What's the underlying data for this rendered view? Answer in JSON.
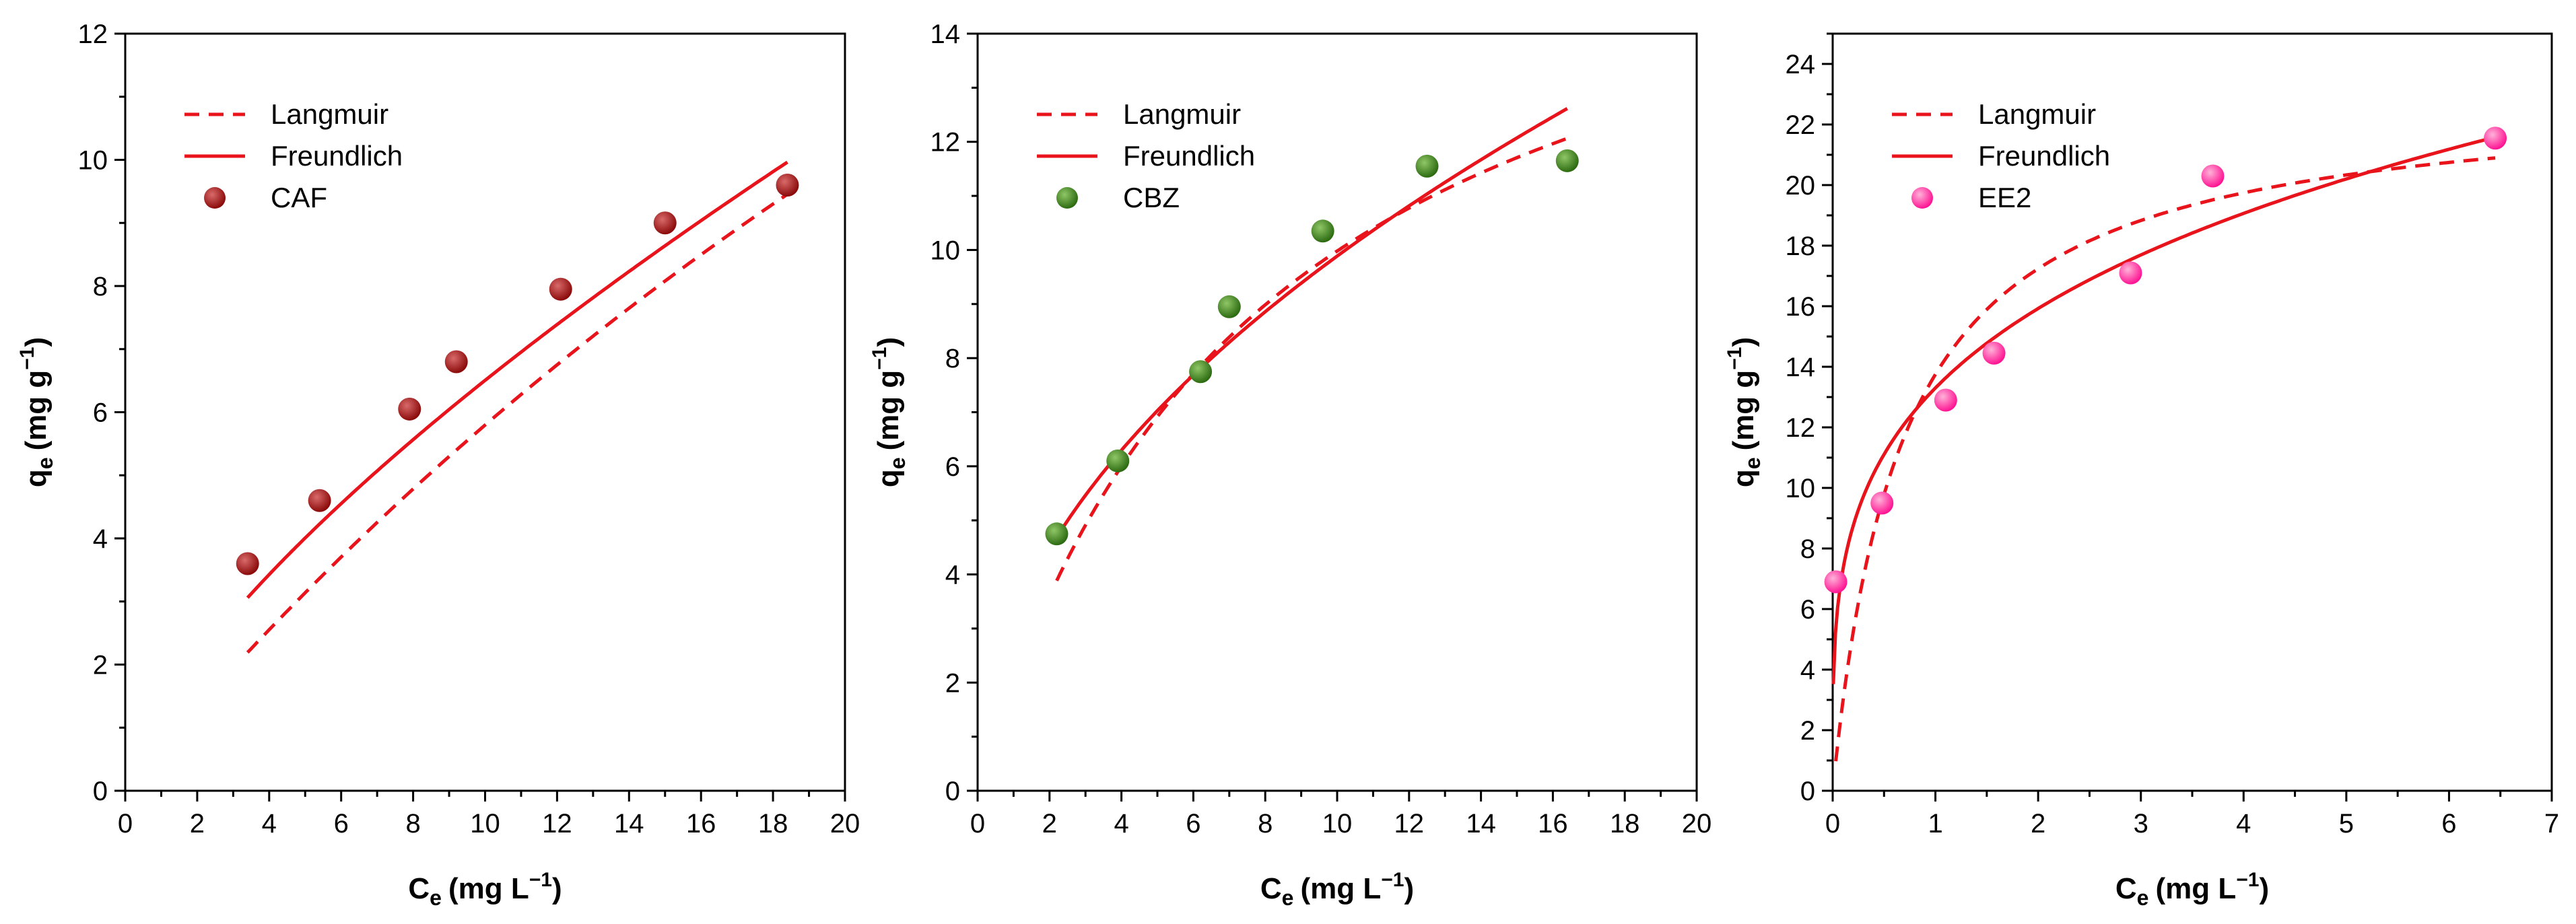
{
  "chart_data": [
    {
      "type": "scatter",
      "legend_position": "top-left",
      "xlabel": {
        "main": "C",
        "sub": "e",
        "unit": "(mg L",
        "sup": "−1",
        "close": ")"
      },
      "ylabel": {
        "main": "q",
        "sub": "e",
        "unit": "(mg g",
        "sup": "−1",
        "close": ")"
      },
      "xlim": [
        0,
        20
      ],
      "ylim": [
        0,
        12
      ],
      "xticks": [
        0,
        2,
        4,
        6,
        8,
        10,
        12,
        14,
        16,
        18,
        20
      ],
      "yticks": [
        0,
        2,
        4,
        6,
        8,
        10,
        12
      ],
      "colors": {
        "line": "#e8131b",
        "marker": "#8b0a0a",
        "marker_highlight": "#d96a6a"
      },
      "legend": {
        "langmuir": "Langmuir",
        "freundlich": "Freundlich",
        "data": "CAF"
      },
      "series": [
        {
          "name": "CAF",
          "kind": "points",
          "x": [
            3.4,
            5.4,
            7.9,
            9.2,
            12.1,
            15.0,
            18.4
          ],
          "y": [
            3.6,
            4.6,
            6.05,
            6.8,
            7.95,
            9.0,
            9.6
          ]
        },
        {
          "name": "Langmuir",
          "kind": "fit",
          "model": "langmuir",
          "params": {
            "qm": 38,
            "KL": 0.018
          },
          "x_range": [
            3.4,
            18.4
          ]
        },
        {
          "name": "Freundlich",
          "kind": "fit",
          "model": "freundlich",
          "params": {
            "KF": 1.3,
            "n": 1.43
          },
          "x_range": [
            3.4,
            18.4
          ]
        }
      ]
    },
    {
      "type": "scatter",
      "legend_position": "top-left",
      "xlabel": {
        "main": "C",
        "sub": "e",
        "unit": "(mg L",
        "sup": "−1",
        "close": ")"
      },
      "ylabel": {
        "main": "q",
        "sub": "e",
        "unit": "(mg g",
        "sup": "−1",
        "close": ")"
      },
      "xlim": [
        0,
        20
      ],
      "ylim": [
        0,
        14
      ],
      "xticks": [
        0,
        2,
        4,
        6,
        8,
        10,
        12,
        14,
        16,
        18,
        20
      ],
      "yticks": [
        0,
        2,
        4,
        6,
        8,
        10,
        12,
        14
      ],
      "colors": {
        "line": "#e8131b",
        "marker": "#2d6b12",
        "marker_highlight": "#8fc766"
      },
      "legend": {
        "langmuir": "Langmuir",
        "freundlich": "Freundlich",
        "data": "CBZ"
      },
      "series": [
        {
          "name": "CBZ",
          "kind": "points",
          "x": [
            2.2,
            3.9,
            6.2,
            7.0,
            9.6,
            12.5,
            16.4
          ],
          "y": [
            4.75,
            6.1,
            7.75,
            8.95,
            10.35,
            11.55,
            11.65
          ]
        },
        {
          "name": "Langmuir",
          "kind": "fit",
          "model": "langmuir",
          "params": {
            "qm": 17.9,
            "KL": 0.126
          },
          "x_range": [
            2.2,
            16.4
          ]
        },
        {
          "name": "Freundlich",
          "kind": "fit",
          "model": "freundlich",
          "params": {
            "KF": 3.18,
            "n": 2.03
          },
          "x_range": [
            2.2,
            16.4
          ]
        }
      ]
    },
    {
      "type": "scatter",
      "legend_position": "top-left",
      "xlabel": {
        "main": "C",
        "sub": "e",
        "unit": "(mg L",
        "sup": "−1",
        "close": ")"
      },
      "ylabel": {
        "main": "q",
        "sub": "e",
        "unit": "(mg g",
        "sup": "−1",
        "close": ")"
      },
      "xlim": [
        0,
        7
      ],
      "ylim": [
        0,
        25
      ],
      "xticks": [
        0,
        1,
        2,
        3,
        4,
        5,
        6,
        7
      ],
      "yticks": [
        0,
        2,
        4,
        6,
        8,
        10,
        12,
        14,
        16,
        18,
        20,
        22,
        24
      ],
      "colors": {
        "line": "#e8131b",
        "marker": "#ff1493",
        "marker_highlight": "#ffb3d9"
      },
      "legend": {
        "langmuir": "Langmuir",
        "freundlich": "Freundlich",
        "data": "EE2"
      },
      "series": [
        {
          "name": "EE2",
          "kind": "points",
          "x": [
            0.03,
            0.48,
            1.1,
            1.57,
            2.9,
            3.7,
            6.45
          ],
          "y": [
            6.9,
            9.5,
            12.9,
            14.45,
            17.1,
            20.3,
            21.55
          ]
        },
        {
          "name": "Langmuir",
          "kind": "fit",
          "model": "langmuir",
          "params": {
            "qm": 23.1,
            "KL": 1.47
          },
          "x_range": [
            0.03,
            6.45
          ]
        },
        {
          "name": "Freundlich",
          "kind": "fit",
          "model": "freundlich",
          "params": {
            "KF": 13.3,
            "n": 3.85
          },
          "x_range": [
            0.006,
            6.45
          ]
        }
      ]
    }
  ]
}
